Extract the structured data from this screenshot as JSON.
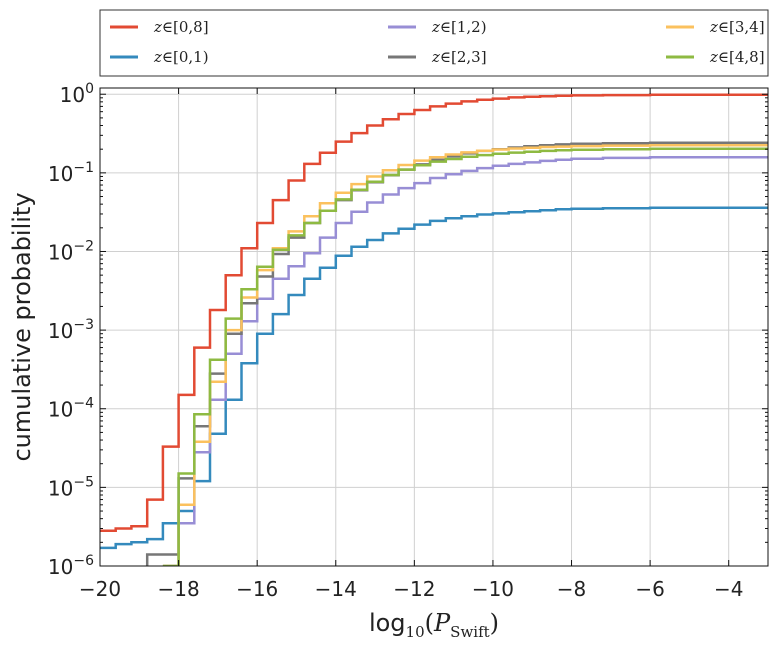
{
  "chart_data": {
    "type": "line",
    "step": true,
    "xlabel": {
      "base": "log",
      "sub": "10",
      "open": "(",
      "var": "P",
      "varsub": "Swift",
      "close": ")"
    },
    "ylabel": "cumulative probability",
    "xlim": [
      -20,
      -3
    ],
    "ylim": [
      1e-06,
      1.2
    ],
    "yscale": "log",
    "grid": true,
    "legend_position": "top (above plot), 3 columns",
    "xticks": [
      -20,
      -18,
      -16,
      -14,
      -12,
      -10,
      -8,
      -6,
      -4
    ],
    "xtick_labels": [
      "−20",
      "−18",
      "−16",
      "−14",
      "−12",
      "−10",
      "−8",
      "−6",
      "−4"
    ],
    "yticks": [
      {
        "value": 1e-06,
        "base": "10",
        "exp": "-6"
      },
      {
        "value": 1e-05,
        "base": "10",
        "exp": "-5"
      },
      {
        "value": 0.0001,
        "base": "10",
        "exp": "-4"
      },
      {
        "value": 0.001,
        "base": "10",
        "exp": "-3"
      },
      {
        "value": 0.01,
        "base": "10",
        "exp": "-2"
      },
      {
        "value": 0.1,
        "base": "10",
        "exp": "-1"
      },
      {
        "value": 1,
        "base": "10",
        "exp": "0"
      }
    ],
    "series": [
      {
        "name": "z∈[0,8]",
        "color": "#e24a33",
        "x": [
          -20,
          -19.6,
          -19.2,
          -18.8,
          -18.4,
          -18.0,
          -17.6,
          -17.2,
          -16.8,
          -16.4,
          -16.0,
          -15.6,
          -15.2,
          -14.8,
          -14.4,
          -14.0,
          -13.6,
          -13.2,
          -12.8,
          -12.4,
          -12.0,
          -11.6,
          -11.2,
          -10.8,
          -10.4,
          -10.0,
          -9.6,
          -9.2,
          -8.8,
          -8.4,
          -8.0,
          -7.2,
          -6.0,
          -3
        ],
        "y": [
          2.8e-06,
          3e-06,
          3.2e-06,
          7e-06,
          3.3e-05,
          0.00015,
          0.0006,
          0.0018,
          0.005,
          0.011,
          0.023,
          0.045,
          0.08,
          0.13,
          0.18,
          0.25,
          0.32,
          0.4,
          0.48,
          0.56,
          0.63,
          0.7,
          0.76,
          0.81,
          0.85,
          0.88,
          0.91,
          0.93,
          0.945,
          0.955,
          0.965,
          0.975,
          0.985,
          0.985
        ]
      },
      {
        "name": "z∈[0,1)",
        "color": "#348abd",
        "x": [
          -20,
          -19.6,
          -19.2,
          -18.8,
          -18.4,
          -18.0,
          -17.6,
          -17.2,
          -16.8,
          -16.4,
          -16.0,
          -15.6,
          -15.2,
          -14.8,
          -14.4,
          -14.0,
          -13.6,
          -13.2,
          -12.8,
          -12.4,
          -12.0,
          -11.6,
          -11.2,
          -10.8,
          -10.4,
          -10.0,
          -9.6,
          -9.2,
          -8.8,
          -8.4,
          -8.0,
          -7.2,
          -6.0,
          -3
        ],
        "y": [
          1.7e-06,
          1.9e-06,
          2e-06,
          2.2e-06,
          3.5e-06,
          5e-06,
          1.2e-05,
          4.8e-05,
          0.00013,
          0.00038,
          0.0009,
          0.0016,
          0.0028,
          0.0045,
          0.0062,
          0.0088,
          0.0115,
          0.014,
          0.017,
          0.0195,
          0.022,
          0.0245,
          0.0265,
          0.028,
          0.0295,
          0.0305,
          0.0315,
          0.0325,
          0.0335,
          0.0345,
          0.035,
          0.0355,
          0.036,
          0.036
        ]
      },
      {
        "name": "z∈[1,2)",
        "color": "#988ed5",
        "x": [
          -18.4,
          -18.0,
          -17.6,
          -17.2,
          -16.8,
          -16.4,
          -16.0,
          -15.6,
          -15.2,
          -14.8,
          -14.4,
          -14.0,
          -13.6,
          -13.2,
          -12.8,
          -12.4,
          -12.0,
          -11.6,
          -11.2,
          -10.8,
          -10.4,
          -10.0,
          -9.6,
          -9.2,
          -8.8,
          -8.4,
          -8.0,
          -7.2,
          -6.0,
          -3
        ],
        "y": [
          1e-06,
          3.5e-06,
          2.8e-05,
          0.00013,
          0.0005,
          0.0013,
          0.0025,
          0.0045,
          0.0065,
          0.0095,
          0.015,
          0.023,
          0.032,
          0.042,
          0.053,
          0.064,
          0.074,
          0.086,
          0.096,
          0.106,
          0.115,
          0.123,
          0.13,
          0.136,
          0.142,
          0.147,
          0.151,
          0.155,
          0.158,
          0.158
        ]
      },
      {
        "name": "z∈[2,3]",
        "color": "#777777",
        "x": [
          -18.8,
          -18.4,
          -18.0,
          -17.6,
          -17.2,
          -16.8,
          -16.4,
          -16.0,
          -15.6,
          -15.2,
          -14.8,
          -14.4,
          -14.0,
          -13.6,
          -13.2,
          -12.8,
          -12.4,
          -12.0,
          -11.6,
          -11.2,
          -10.8,
          -10.4,
          -10.0,
          -9.6,
          -9.2,
          -8.8,
          -8.4,
          -8.0,
          -7.2,
          -6.0,
          -3
        ],
        "y": [
          1.4e-06,
          1.4e-06,
          1.3e-05,
          6e-05,
          0.00028,
          0.0009,
          0.0022,
          0.0048,
          0.0093,
          0.015,
          0.023,
          0.033,
          0.045,
          0.06,
          0.076,
          0.093,
          0.11,
          0.128,
          0.146,
          0.162,
          0.177,
          0.19,
          0.2,
          0.21,
          0.218,
          0.225,
          0.23,
          0.234,
          0.238,
          0.242,
          0.242
        ]
      },
      {
        "name": "z∈[3,4]",
        "color": "#fbc15e",
        "x": [
          -18.4,
          -18.0,
          -17.6,
          -17.2,
          -16.8,
          -16.4,
          -16.0,
          -15.6,
          -15.2,
          -14.8,
          -14.4,
          -14.0,
          -13.6,
          -13.2,
          -12.8,
          -12.4,
          -12.0,
          -11.6,
          -11.2,
          -10.8,
          -10.4,
          -10.0,
          -9.6,
          -9.2,
          -8.8,
          -8.4,
          -8.0,
          -7.2,
          -6.0,
          -3
        ],
        "y": [
          1e-06,
          6e-06,
          3.8e-05,
          0.00022,
          0.001,
          0.0026,
          0.0058,
          0.011,
          0.018,
          0.028,
          0.041,
          0.056,
          0.072,
          0.09,
          0.108,
          0.126,
          0.143,
          0.158,
          0.171,
          0.182,
          0.191,
          0.198,
          0.204,
          0.209,
          0.213,
          0.216,
          0.219,
          0.222,
          0.224,
          0.224
        ]
      },
      {
        "name": "z∈[4,8]",
        "color": "#8eba42",
        "x": [
          -18.4,
          -18.0,
          -17.6,
          -17.2,
          -16.8,
          -16.4,
          -16.0,
          -15.6,
          -15.2,
          -14.8,
          -14.4,
          -14.0,
          -13.6,
          -13.2,
          -12.8,
          -12.4,
          -12.0,
          -11.6,
          -11.2,
          -10.8,
          -10.4,
          -10.0,
          -9.6,
          -9.2,
          -8.8,
          -8.4,
          -8.0,
          -7.2,
          -6.0,
          -3
        ],
        "y": [
          1e-06,
          1.5e-05,
          8.5e-05,
          0.00042,
          0.0014,
          0.0033,
          0.0064,
          0.0105,
          0.016,
          0.023,
          0.033,
          0.046,
          0.061,
          0.077,
          0.094,
          0.11,
          0.125,
          0.139,
          0.15,
          0.16,
          0.168,
          0.175,
          0.181,
          0.186,
          0.19,
          0.194,
          0.197,
          0.2,
          0.203,
          0.203
        ]
      }
    ]
  }
}
